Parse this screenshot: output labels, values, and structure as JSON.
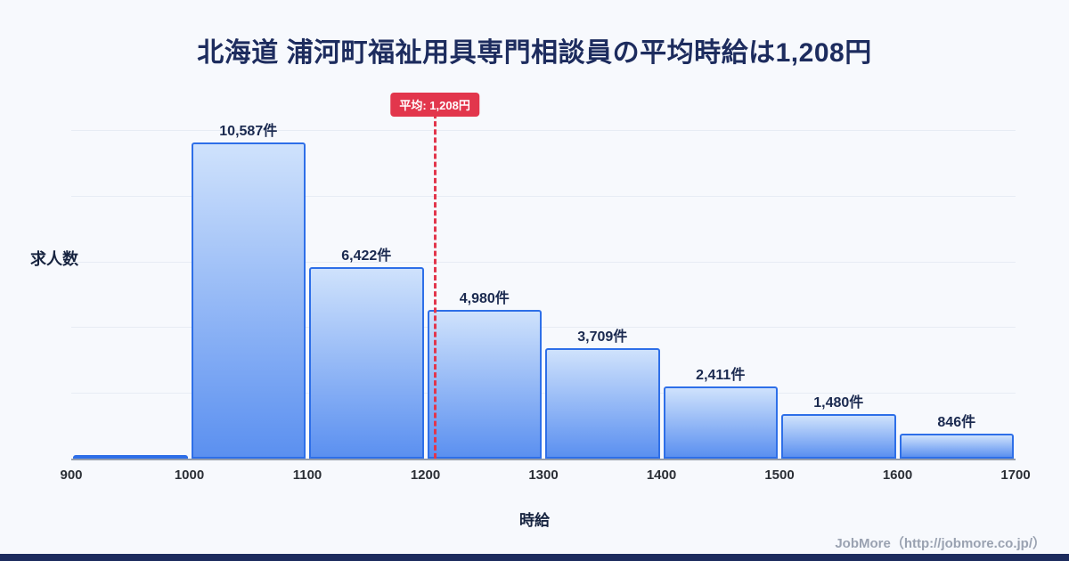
{
  "title": "北海道 浦河町福祉用具専門相談員の平均時給は1,208円",
  "chart_data": {
    "type": "bar",
    "title": "北海道 浦河町福祉用具専門相談員の平均時給は1,208円",
    "xlabel": "時給",
    "ylabel": "求人数",
    "bin_edges": [
      900,
      1000,
      1100,
      1200,
      1300,
      1400,
      1500,
      1600,
      1700
    ],
    "categories": [
      "900-1000",
      "1000-1100",
      "1100-1200",
      "1200-1300",
      "1300-1400",
      "1400-1500",
      "1500-1600",
      "1600-1700"
    ],
    "values": [
      0,
      10587,
      6422,
      4980,
      3709,
      2411,
      1480,
      846
    ],
    "bar_labels": [
      "",
      "10,587件",
      "6,422件",
      "4,980件",
      "3,709件",
      "2,411件",
      "1,480件",
      "846件"
    ],
    "x_ticks": [
      "900",
      "1000",
      "1100",
      "1200",
      "1300",
      "1400",
      "1500",
      "1600",
      "1700"
    ],
    "average": {
      "value": 1208,
      "label": "平均: 1,208円"
    },
    "ylim": [
      0,
      11000
    ],
    "grid": true,
    "legend": "none",
    "colors": {
      "background": "#f7f9fd",
      "bar_fill_top": "#cfe2fc",
      "bar_fill_bottom": "#5b90f0",
      "bar_border": "#2e6fe8",
      "average_line": "#e2364c",
      "title_color": "#1d2c5e"
    }
  },
  "footer": {
    "credit": "JobMore（http://jobmore.co.jp/）"
  }
}
